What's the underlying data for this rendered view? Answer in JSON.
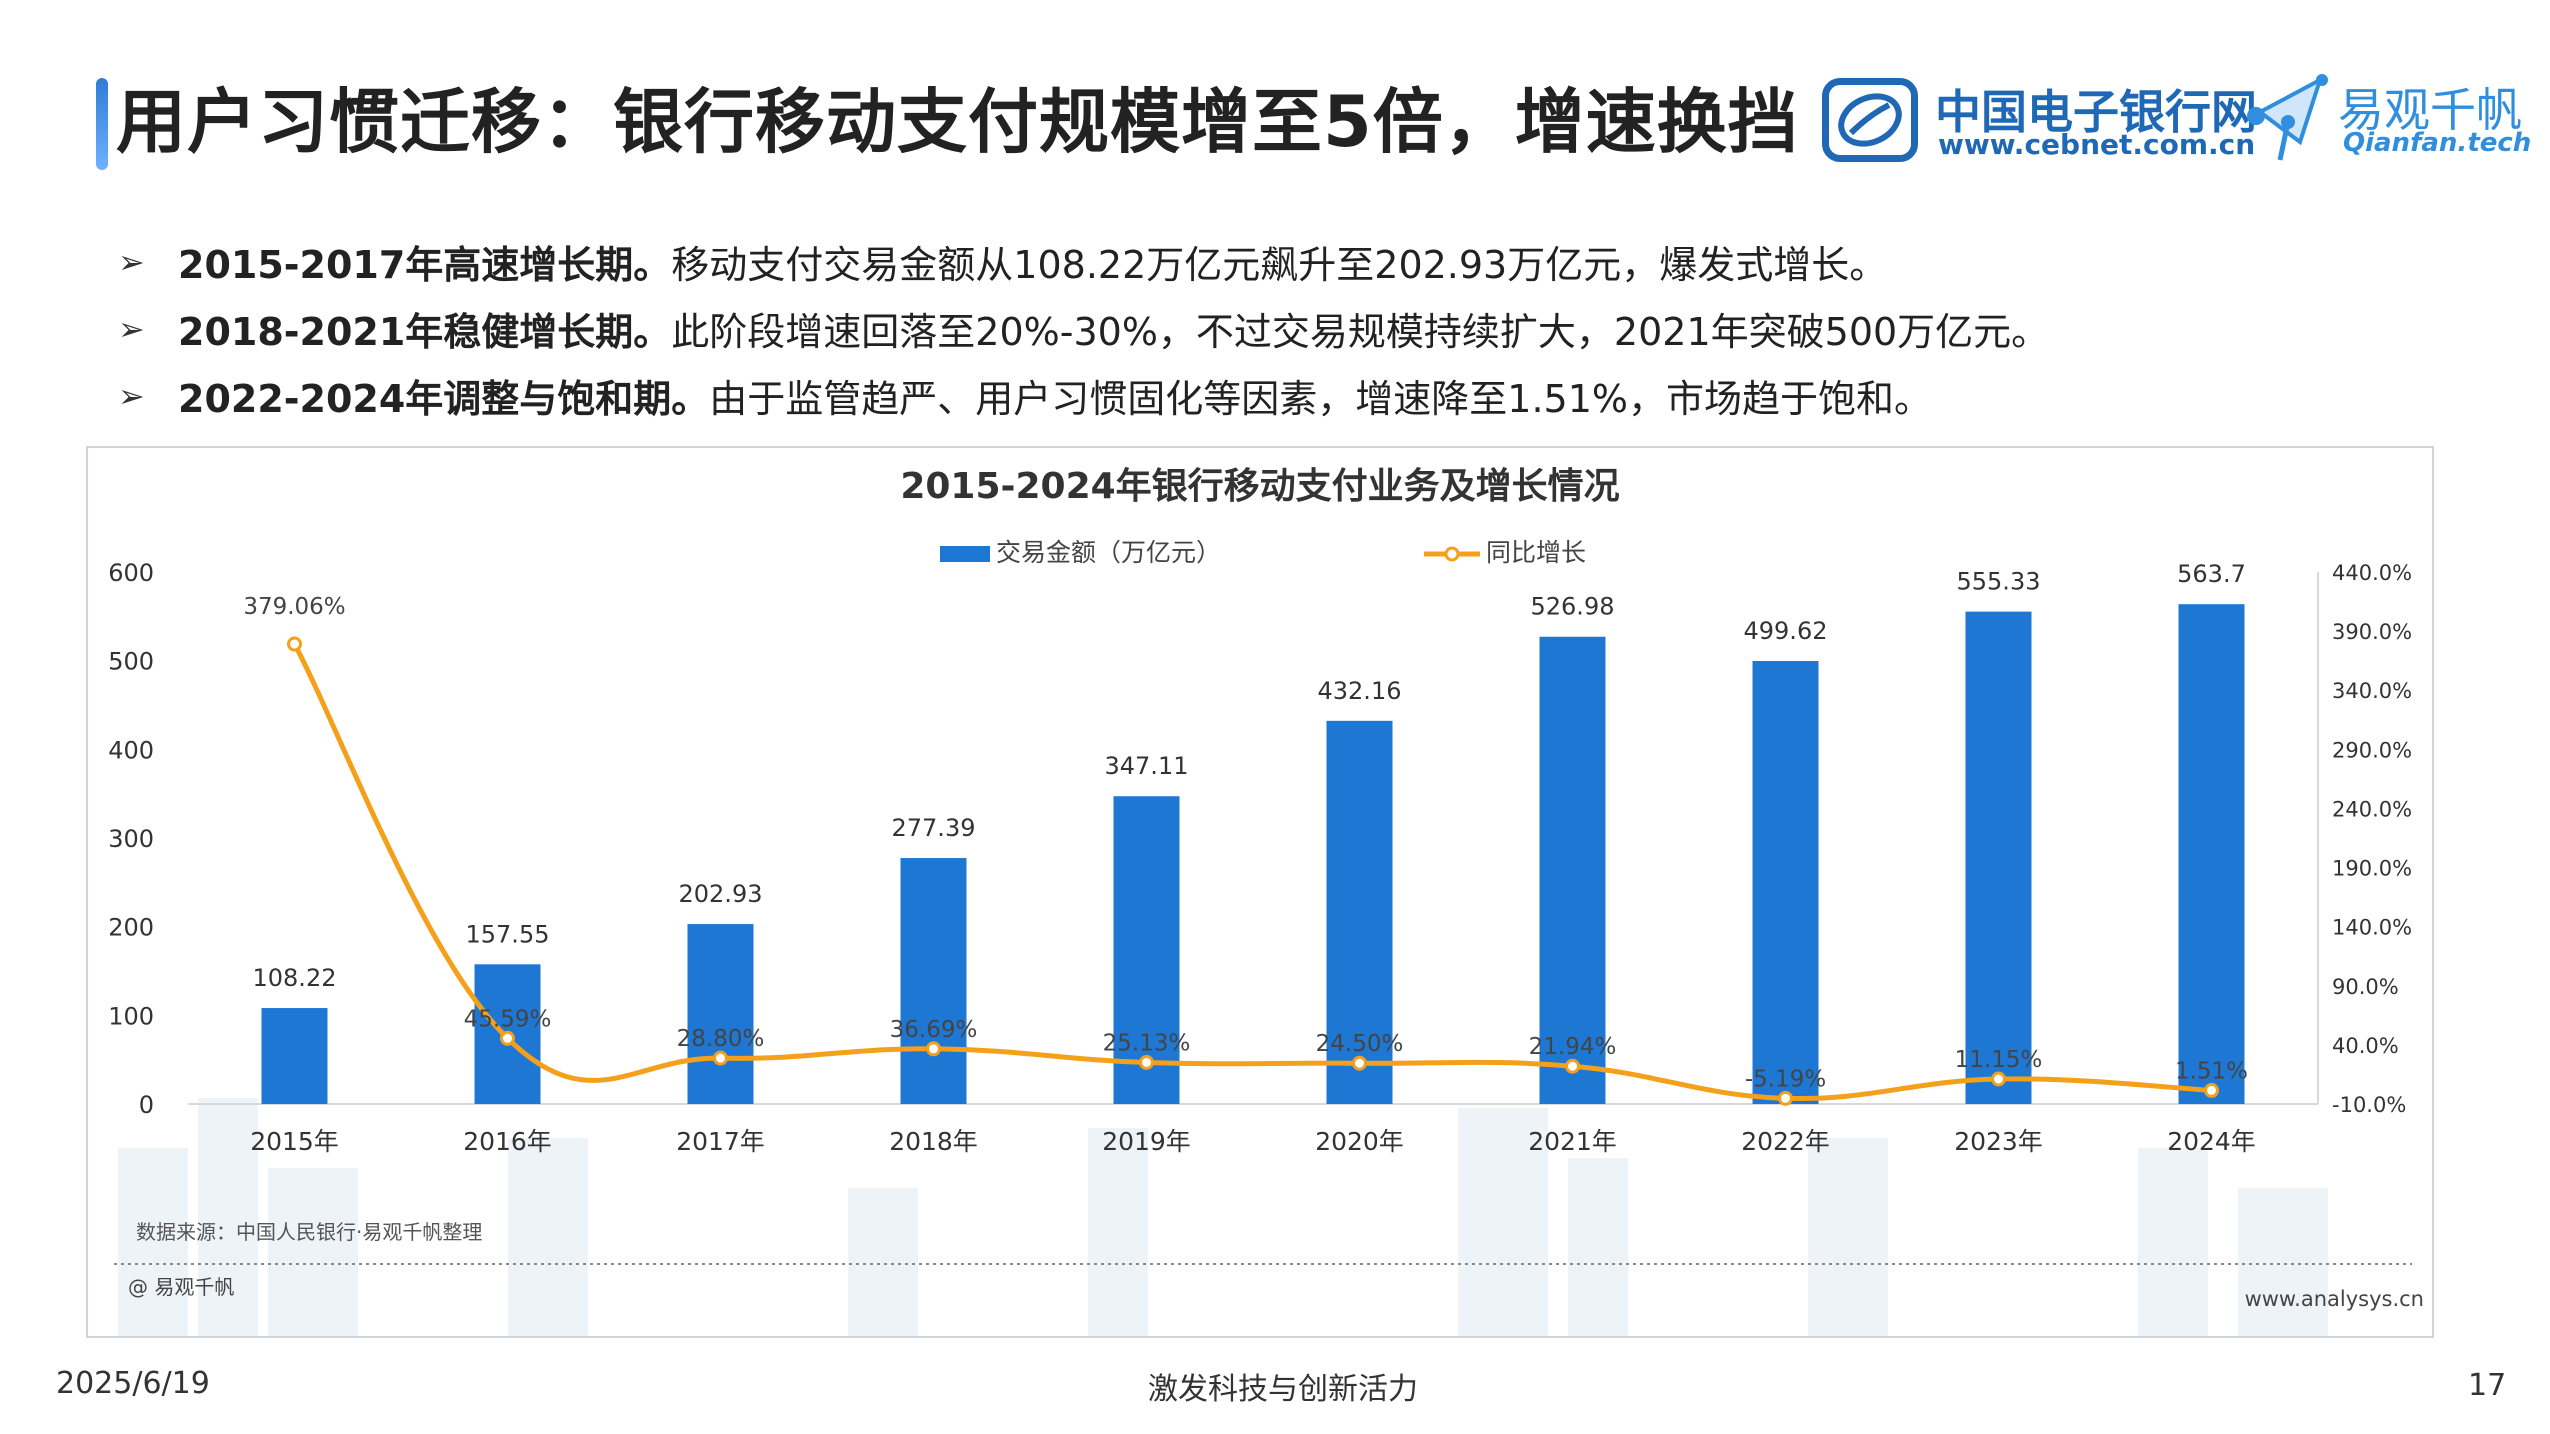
{
  "header": {
    "title": "用户习惯迁移：银行移动支付规模增至5倍，增速换挡",
    "logo1_name": "中国电子银行网",
    "logo1_url": "www.cebnet.com.cn",
    "logo2_name": "易观千帆",
    "logo2_url": "Qianfan.tech"
  },
  "bullets": [
    {
      "marker": "➢",
      "strong": "2015-2017年高速增长期。",
      "text": "移动支付交易金额从108.22万亿元飙升至202.93万亿元，爆发式增长。"
    },
    {
      "marker": "➢",
      "strong": "2018-2021年稳健增长期。",
      "text": "此阶段增速回落至20%-30%，不过交易规模持续扩大，2021年突破500万亿元。"
    },
    {
      "marker": "➢",
      "strong": "2022-2024年调整与饱和期。",
      "text": "由于监管趋严、用户习惯固化等因素，增速降至1.51%，市场趋于饱和。"
    }
  ],
  "chart_data": {
    "type": "bar",
    "title": "2015-2024年银行移动支付业务及增长情况",
    "categories": [
      "2015年",
      "2016年",
      "2017年",
      "2018年",
      "2019年",
      "2020年",
      "2021年",
      "2022年",
      "2023年",
      "2024年"
    ],
    "series": [
      {
        "name": "交易金额（万亿元）",
        "type": "bar",
        "axis": "left",
        "color": "#1f77d4",
        "values": [
          108.22,
          157.55,
          202.93,
          277.39,
          347.11,
          432.16,
          526.98,
          499.62,
          555.33,
          563.7
        ],
        "labels": [
          "108.22",
          "157.55",
          "202.93",
          "277.39",
          "347.11",
          "432.16",
          "526.98",
          "499.62",
          "555.33",
          "563.7"
        ]
      },
      {
        "name": "同比增长",
        "type": "line",
        "axis": "right",
        "color": "#f5a01a",
        "values": [
          379.06,
          45.59,
          28.8,
          36.69,
          25.13,
          24.5,
          21.94,
          -5.19,
          11.15,
          1.51
        ],
        "labels": [
          "379.06%",
          "45.59%",
          "28.80%",
          "36.69%",
          "25.13%",
          "24.50%",
          "21.94%",
          "-5.19%",
          "11.15%",
          "1.51%"
        ]
      }
    ],
    "ylim_left": [
      0,
      600
    ],
    "yticks_left": [
      "0",
      "100",
      "200",
      "300",
      "400",
      "500",
      "600"
    ],
    "ylim_right": [
      -10,
      440
    ],
    "yticks_right": [
      "-10.0%",
      "40.0%",
      "90.0%",
      "140.0%",
      "190.0%",
      "240.0%",
      "290.0%",
      "340.0%",
      "390.0%",
      "440.0%"
    ],
    "legend_position": "top-center",
    "grid": false,
    "source": "数据来源：中国人民银行·易观千帆整理",
    "credit": "@ 易观千帆",
    "site": "www.analysys.cn"
  },
  "footer": {
    "date": "2025/6/19",
    "slogan": "激发科技与创新活力",
    "page": "17"
  }
}
